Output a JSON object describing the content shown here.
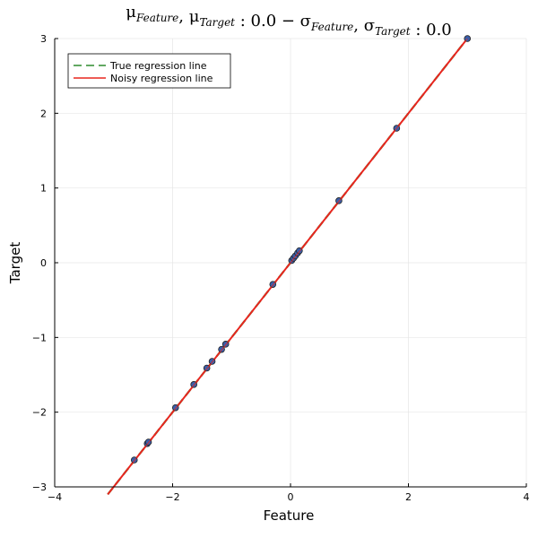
{
  "chart_data": {
    "type": "scatter",
    "title_parts": [
      {
        "t": "μ",
        "sub": "Feature"
      },
      {
        "t": ", μ",
        "sub": "Target"
      },
      {
        "t": " : 0.0 − σ",
        "sub": "Feature"
      },
      {
        "t": ", σ",
        "sub": "Target"
      },
      {
        "t": " : 0.0",
        "sub": ""
      }
    ],
    "xlabel": "Feature",
    "ylabel": "Target",
    "xlim": [
      -4,
      4
    ],
    "ylim": [
      -3,
      3
    ],
    "x_ticks": [
      -4,
      -2,
      0,
      2,
      4
    ],
    "x_tick_labels": [
      "−4",
      "−2",
      "0",
      "2",
      "4"
    ],
    "y_ticks": [
      -3,
      -2,
      -1,
      0,
      1,
      2,
      3
    ],
    "y_tick_labels": [
      "−3",
      "−2",
      "−1",
      "0",
      "1",
      "2",
      "3"
    ],
    "grid": true,
    "legend_position": "top-left",
    "points": {
      "color": "#3b5ea8",
      "x": [
        -2.65,
        -2.43,
        -2.41,
        -1.95,
        -1.64,
        -1.42,
        -1.33,
        -1.17,
        -1.1,
        -0.3,
        0.02,
        0.05,
        0.08,
        0.12,
        0.15,
        0.82,
        1.8,
        3.0
      ],
      "y": [
        -2.64,
        -2.42,
        -2.4,
        -1.94,
        -1.63,
        -1.41,
        -1.32,
        -1.16,
        -1.09,
        -0.29,
        0.03,
        0.06,
        0.09,
        0.13,
        0.16,
        0.83,
        1.8,
        3.0
      ]
    },
    "series": [
      {
        "name": "True regression line",
        "color": "#2e8b2e",
        "dash": "dashed",
        "x": [
          -3.1,
          3.0
        ],
        "y": [
          -3.1,
          3.0
        ]
      },
      {
        "name": "Noisy regression line",
        "color": "#e8261f",
        "dash": "solid",
        "x": [
          -3.1,
          3.0
        ],
        "y": [
          -3.1,
          3.0
        ]
      }
    ]
  }
}
